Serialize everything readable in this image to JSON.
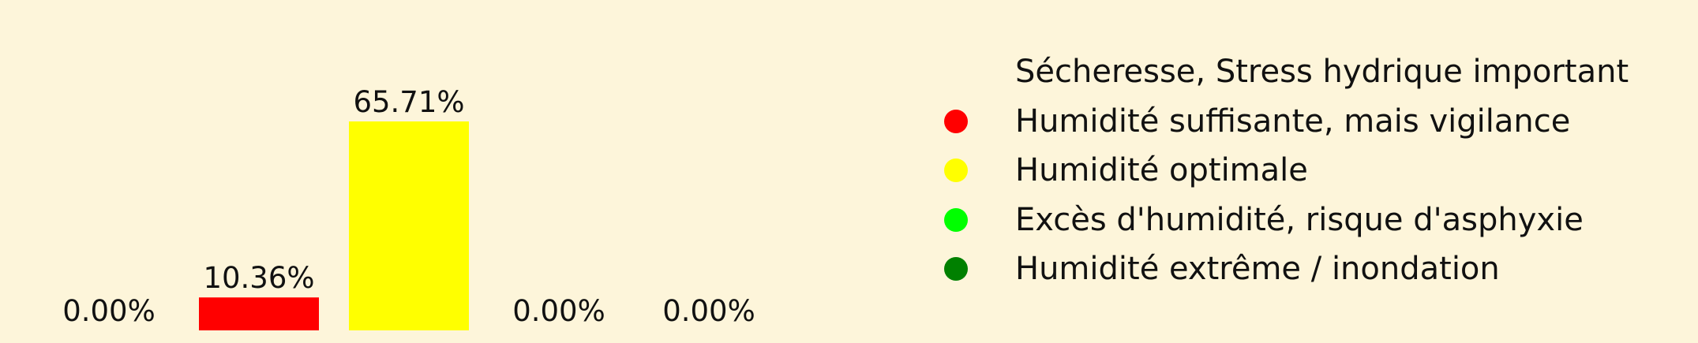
{
  "chart_data": {
    "type": "bar",
    "categories": [
      "Sécheresse, Stress hydrique important",
      "Humidité suffisante, mais vigilance",
      "Humidité optimale",
      "Excès d'humidité, risque d'asphyxie",
      "Humidité extrême / inondation"
    ],
    "values": [
      0.0,
      10.36,
      65.71,
      0.0,
      0.0
    ],
    "value_labels": [
      "0.00%",
      "10.36%",
      "65.71%",
      "0.00%",
      "0.00%"
    ],
    "colors": [
      "#fdf5da",
      "#ff0000",
      "#ffff00",
      "#00ff00",
      "#008000"
    ],
    "unit": "%",
    "ylim": [
      0,
      65.71
    ],
    "grid": false,
    "legend_position": "right"
  }
}
